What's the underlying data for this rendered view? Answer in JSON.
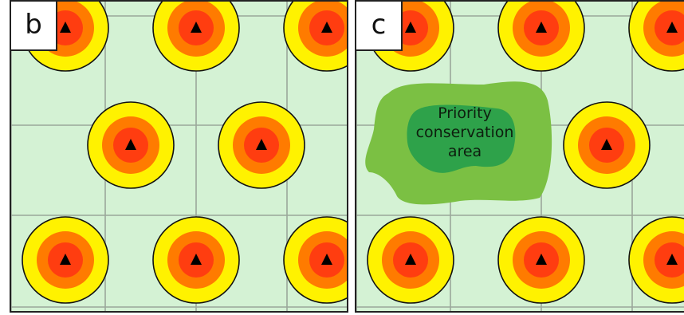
{
  "panels": [
    {
      "id": "b",
      "label": "b",
      "background_color": "#d4f2d4",
      "grid_color": "#9aa79a",
      "sites": [
        {
          "col": 0.5,
          "row": 0
        },
        {
          "col": 2,
          "row": 0
        },
        {
          "col": 3.5,
          "row": 0
        },
        {
          "col": 1.25,
          "row": 1
        },
        {
          "col": 2.75,
          "row": 1
        },
        {
          "col": 0.5,
          "row": 2
        },
        {
          "col": 2,
          "row": 2
        },
        {
          "col": 3.5,
          "row": 2
        }
      ]
    },
    {
      "id": "c",
      "label": "c",
      "background_color": "#d4f2d4",
      "grid_color": "#9aa79a",
      "sites": [
        {
          "col": 0.5,
          "row": 0
        },
        {
          "col": 2,
          "row": 0
        },
        {
          "col": 3.5,
          "row": 0
        },
        {
          "col": 2.75,
          "row": 1
        },
        {
          "col": 0.5,
          "row": 2
        },
        {
          "col": 2,
          "row": 2
        },
        {
          "col": 3.5,
          "row": 2
        }
      ],
      "priority_area": {
        "label_lines": [
          "Priority",
          "conservation",
          "area"
        ],
        "outer_color": "#7bc043",
        "inner_color": "#2ea24a"
      }
    }
  ],
  "ring_colors": [
    "#fff200",
    "#ff7b00",
    "#ff3d10"
  ],
  "marker_color": "#000000"
}
